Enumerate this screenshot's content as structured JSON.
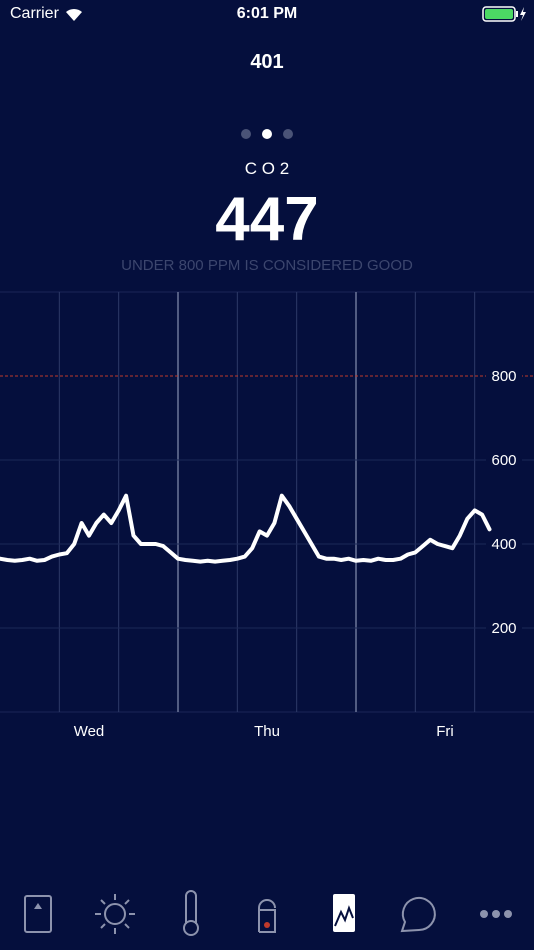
{
  "status_bar": {
    "carrier": "Carrier",
    "time": "6:01 PM"
  },
  "header": {
    "title": "401"
  },
  "metric": {
    "name": "C O 2",
    "value": "447",
    "note": "UNDER 800 PPM IS CONSIDERED GOOD"
  },
  "chart_data": {
    "type": "line",
    "x": [
      0,
      1,
      2,
      3,
      4,
      5,
      6,
      7,
      8,
      9,
      10,
      11,
      12,
      13,
      14,
      15,
      16,
      17,
      18,
      19,
      20,
      21,
      22,
      23,
      24,
      25,
      26,
      27,
      28,
      29,
      30,
      31,
      32,
      33,
      34,
      35,
      36,
      37,
      38,
      39,
      40,
      41,
      42,
      43,
      44,
      45,
      46,
      47,
      48,
      49,
      50,
      51,
      52,
      53,
      54,
      55,
      56,
      57,
      58,
      59,
      60,
      61,
      62,
      63,
      64,
      65,
      66
    ],
    "series": [
      {
        "name": "CO2",
        "color": "#ffffff",
        "values": [
          365,
          362,
          360,
          362,
          365,
          360,
          362,
          370,
          375,
          378,
          400,
          450,
          420,
          450,
          470,
          450,
          480,
          515,
          420,
          400,
          400,
          400,
          395,
          380,
          365,
          362,
          360,
          358,
          360,
          358,
          360,
          362,
          365,
          370,
          390,
          430,
          420,
          450,
          515,
          490,
          460,
          430,
          400,
          370,
          365,
          365,
          362,
          365,
          360,
          362,
          360,
          365,
          362,
          362,
          365,
          375,
          380,
          395,
          410,
          400,
          395,
          390,
          420,
          460,
          480,
          470,
          435
        ]
      }
    ],
    "xlim": [
      0,
      72
    ],
    "xticks": [
      {
        "value": 12,
        "label": "Wed"
      },
      {
        "value": 36,
        "label": "Thu"
      },
      {
        "value": 60,
        "label": "Fri"
      }
    ],
    "xgrid": [
      8,
      16,
      24,
      32,
      40,
      48,
      56,
      64
    ],
    "xgrid_major": [
      24,
      48
    ],
    "ylim": [
      0,
      1000
    ],
    "yticks": [
      200,
      400,
      600,
      800
    ],
    "threshold": 800,
    "threshold_color": "#c0392b",
    "grid": true
  }
}
